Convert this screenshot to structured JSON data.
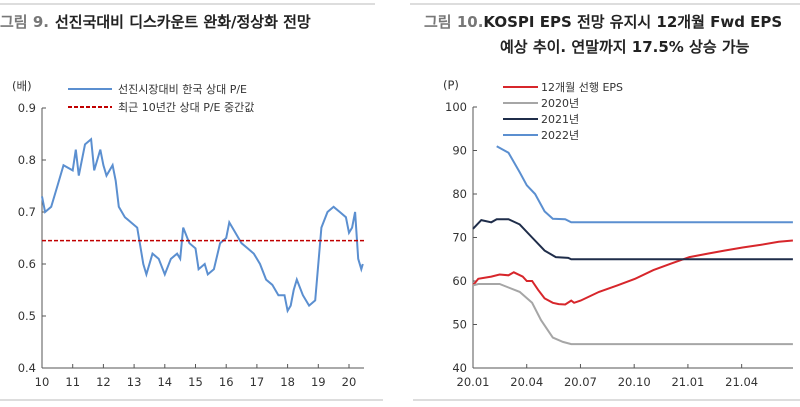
{
  "chart_data": [
    {
      "type": "line",
      "title_prefix": "그림 9.",
      "title": "선진국대비 디스카운트 완화/정상화 전망",
      "ylabel": "(배)",
      "ylim": [
        0.4,
        0.9
      ],
      "yticks": [
        "0.9",
        "0.8",
        "0.7",
        "0.6",
        "0.5",
        "0.4"
      ],
      "xticks": [
        "10",
        "11",
        "12",
        "13",
        "14",
        "15",
        "16",
        "17",
        "18",
        "19",
        "20"
      ],
      "xlim": [
        10,
        20.5
      ],
      "grid": false,
      "legend": "top-left",
      "series": [
        {
          "name": "선진시장대비 한국 상대 P/E",
          "color": "#5b8fd0",
          "style": "solid",
          "x": [
            10.0,
            10.1,
            10.3,
            10.5,
            10.7,
            11.0,
            11.1,
            11.2,
            11.4,
            11.6,
            11.7,
            11.9,
            12.0,
            12.1,
            12.3,
            12.4,
            12.5,
            12.7,
            12.9,
            13.1,
            13.3,
            13.4,
            13.6,
            13.8,
            14.0,
            14.2,
            14.4,
            14.5,
            14.6,
            14.8,
            15.0,
            15.1,
            15.3,
            15.4,
            15.6,
            15.8,
            16.0,
            16.1,
            16.3,
            16.5,
            16.7,
            16.9,
            17.1,
            17.3,
            17.5,
            17.7,
            17.9,
            18.0,
            18.1,
            18.2,
            18.3,
            18.5,
            18.7,
            18.9,
            19.0,
            19.1,
            19.3,
            19.5,
            19.7,
            19.9,
            20.0,
            20.1,
            20.2,
            20.3,
            20.4,
            20.45
          ],
          "y": [
            0.73,
            0.7,
            0.71,
            0.75,
            0.79,
            0.78,
            0.82,
            0.77,
            0.83,
            0.84,
            0.78,
            0.82,
            0.79,
            0.77,
            0.79,
            0.76,
            0.71,
            0.69,
            0.68,
            0.67,
            0.6,
            0.58,
            0.62,
            0.61,
            0.58,
            0.61,
            0.62,
            0.61,
            0.67,
            0.64,
            0.63,
            0.59,
            0.6,
            0.58,
            0.59,
            0.64,
            0.65,
            0.68,
            0.66,
            0.64,
            0.63,
            0.62,
            0.6,
            0.57,
            0.56,
            0.54,
            0.54,
            0.51,
            0.52,
            0.55,
            0.57,
            0.54,
            0.52,
            0.53,
            0.6,
            0.67,
            0.7,
            0.71,
            0.7,
            0.69,
            0.66,
            0.67,
            0.7,
            0.61,
            0.59,
            0.6
          ]
        },
        {
          "name": "최근 10년간 상대 P/E 중간값",
          "color": "#c00000",
          "style": "dashed",
          "x": [
            10,
            20.5
          ],
          "y": [
            0.645,
            0.645
          ]
        }
      ]
    },
    {
      "type": "line",
      "title_prefix": "그림 10.",
      "title": "KOSPI EPS 전망 유지시 12개월 Fwd EPS",
      "title_line2": "예상 추이. 연말까지 17.5% 상승 가능",
      "ylabel": "(P)",
      "ylim": [
        40,
        100
      ],
      "yticks": [
        "100",
        "90",
        "80",
        "70",
        "60",
        "50",
        "40"
      ],
      "xticks": [
        "20.01",
        "20.04",
        "20.07",
        "20.10",
        "21.01",
        "21.04"
      ],
      "xlim": [
        "2020-01-01",
        "2021-06-28"
      ],
      "grid": false,
      "legend": "top-left",
      "series": [
        {
          "name": "12개월 선행 EPS",
          "color": "#d7262b",
          "x": [
            "2020-01-01",
            "2020-01-10",
            "2020-02-01",
            "2020-02-15",
            "2020-03-01",
            "2020-03-10",
            "2020-03-25",
            "2020-04-01",
            "2020-04-10",
            "2020-04-20",
            "2020-05-01",
            "2020-05-15",
            "2020-05-25",
            "2020-06-05",
            "2020-06-15",
            "2020-06-20",
            "2020-07-01",
            "2020-08-01",
            "2020-09-01",
            "2020-10-01",
            "2020-11-01",
            "2020-12-01",
            "2021-01-01",
            "2021-02-01",
            "2021-03-01",
            "2021-04-01",
            "2021-05-01",
            "2021-06-01",
            "2021-06-25"
          ],
          "y": [
            59,
            60.5,
            61,
            61.5,
            61.3,
            62,
            61,
            60,
            60,
            58,
            56,
            55,
            54.7,
            54.6,
            55.5,
            55,
            55.5,
            57.5,
            59,
            60.5,
            62.5,
            64,
            65.5,
            66.3,
            67,
            67.7,
            68.3,
            69,
            69.3
          ]
        },
        {
          "name": "2020년",
          "color": "#a6a6a6",
          "x": [
            "2020-01-01",
            "2020-01-10",
            "2020-02-15",
            "2020-03-01",
            "2020-03-20",
            "2020-04-10",
            "2020-04-25",
            "2020-05-15",
            "2020-06-01",
            "2020-06-15",
            "2021-06-25"
          ],
          "y": [
            59,
            59.3,
            59.3,
            58.5,
            57.5,
            55,
            51,
            47,
            46,
            45.5,
            45.5
          ]
        },
        {
          "name": "2021년",
          "color": "#1f2d4a",
          "x": [
            "2020-01-01",
            "2020-01-15",
            "2020-02-01",
            "2020-02-10",
            "2020-03-01",
            "2020-03-20",
            "2020-04-10",
            "2020-05-01",
            "2020-05-20",
            "2020-06-10",
            "2020-06-15",
            "2021-06-25"
          ],
          "y": [
            72,
            74,
            73.5,
            74.2,
            74.2,
            73,
            70,
            67,
            65.5,
            65.3,
            65,
            65
          ]
        },
        {
          "name": "2022년",
          "color": "#5b8fd0",
          "x": [
            "2020-02-10",
            "2020-03-01",
            "2020-03-20",
            "2020-04-01",
            "2020-04-15",
            "2020-05-01",
            "2020-05-15",
            "2020-06-05",
            "2020-06-15",
            "2021-06-25"
          ],
          "y": [
            91,
            89.5,
            85,
            82,
            80,
            76,
            74.3,
            74.2,
            73.5,
            73.5
          ]
        }
      ]
    }
  ]
}
